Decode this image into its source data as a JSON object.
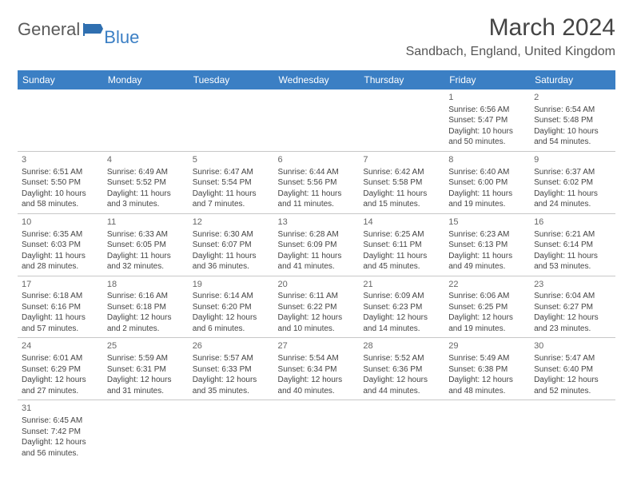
{
  "logo": {
    "general": "General",
    "blue": "Blue",
    "flag_color": "#2f6fb0"
  },
  "title": "March 2024",
  "location": "Sandbach, England, United Kingdom",
  "header_bg": "#3b7fc4",
  "day_headers": [
    "Sunday",
    "Monday",
    "Tuesday",
    "Wednesday",
    "Thursday",
    "Friday",
    "Saturday"
  ],
  "weeks": [
    [
      null,
      null,
      null,
      null,
      null,
      {
        "n": "1",
        "sr": "Sunrise: 6:56 AM",
        "ss": "Sunset: 5:47 PM",
        "dl1": "Daylight: 10 hours",
        "dl2": "and 50 minutes."
      },
      {
        "n": "2",
        "sr": "Sunrise: 6:54 AM",
        "ss": "Sunset: 5:48 PM",
        "dl1": "Daylight: 10 hours",
        "dl2": "and 54 minutes."
      }
    ],
    [
      {
        "n": "3",
        "sr": "Sunrise: 6:51 AM",
        "ss": "Sunset: 5:50 PM",
        "dl1": "Daylight: 10 hours",
        "dl2": "and 58 minutes."
      },
      {
        "n": "4",
        "sr": "Sunrise: 6:49 AM",
        "ss": "Sunset: 5:52 PM",
        "dl1": "Daylight: 11 hours",
        "dl2": "and 3 minutes."
      },
      {
        "n": "5",
        "sr": "Sunrise: 6:47 AM",
        "ss": "Sunset: 5:54 PM",
        "dl1": "Daylight: 11 hours",
        "dl2": "and 7 minutes."
      },
      {
        "n": "6",
        "sr": "Sunrise: 6:44 AM",
        "ss": "Sunset: 5:56 PM",
        "dl1": "Daylight: 11 hours",
        "dl2": "and 11 minutes."
      },
      {
        "n": "7",
        "sr": "Sunrise: 6:42 AM",
        "ss": "Sunset: 5:58 PM",
        "dl1": "Daylight: 11 hours",
        "dl2": "and 15 minutes."
      },
      {
        "n": "8",
        "sr": "Sunrise: 6:40 AM",
        "ss": "Sunset: 6:00 PM",
        "dl1": "Daylight: 11 hours",
        "dl2": "and 19 minutes."
      },
      {
        "n": "9",
        "sr": "Sunrise: 6:37 AM",
        "ss": "Sunset: 6:02 PM",
        "dl1": "Daylight: 11 hours",
        "dl2": "and 24 minutes."
      }
    ],
    [
      {
        "n": "10",
        "sr": "Sunrise: 6:35 AM",
        "ss": "Sunset: 6:03 PM",
        "dl1": "Daylight: 11 hours",
        "dl2": "and 28 minutes."
      },
      {
        "n": "11",
        "sr": "Sunrise: 6:33 AM",
        "ss": "Sunset: 6:05 PM",
        "dl1": "Daylight: 11 hours",
        "dl2": "and 32 minutes."
      },
      {
        "n": "12",
        "sr": "Sunrise: 6:30 AM",
        "ss": "Sunset: 6:07 PM",
        "dl1": "Daylight: 11 hours",
        "dl2": "and 36 minutes."
      },
      {
        "n": "13",
        "sr": "Sunrise: 6:28 AM",
        "ss": "Sunset: 6:09 PM",
        "dl1": "Daylight: 11 hours",
        "dl2": "and 41 minutes."
      },
      {
        "n": "14",
        "sr": "Sunrise: 6:25 AM",
        "ss": "Sunset: 6:11 PM",
        "dl1": "Daylight: 11 hours",
        "dl2": "and 45 minutes."
      },
      {
        "n": "15",
        "sr": "Sunrise: 6:23 AM",
        "ss": "Sunset: 6:13 PM",
        "dl1": "Daylight: 11 hours",
        "dl2": "and 49 minutes."
      },
      {
        "n": "16",
        "sr": "Sunrise: 6:21 AM",
        "ss": "Sunset: 6:14 PM",
        "dl1": "Daylight: 11 hours",
        "dl2": "and 53 minutes."
      }
    ],
    [
      {
        "n": "17",
        "sr": "Sunrise: 6:18 AM",
        "ss": "Sunset: 6:16 PM",
        "dl1": "Daylight: 11 hours",
        "dl2": "and 57 minutes."
      },
      {
        "n": "18",
        "sr": "Sunrise: 6:16 AM",
        "ss": "Sunset: 6:18 PM",
        "dl1": "Daylight: 12 hours",
        "dl2": "and 2 minutes."
      },
      {
        "n": "19",
        "sr": "Sunrise: 6:14 AM",
        "ss": "Sunset: 6:20 PM",
        "dl1": "Daylight: 12 hours",
        "dl2": "and 6 minutes."
      },
      {
        "n": "20",
        "sr": "Sunrise: 6:11 AM",
        "ss": "Sunset: 6:22 PM",
        "dl1": "Daylight: 12 hours",
        "dl2": "and 10 minutes."
      },
      {
        "n": "21",
        "sr": "Sunrise: 6:09 AM",
        "ss": "Sunset: 6:23 PM",
        "dl1": "Daylight: 12 hours",
        "dl2": "and 14 minutes."
      },
      {
        "n": "22",
        "sr": "Sunrise: 6:06 AM",
        "ss": "Sunset: 6:25 PM",
        "dl1": "Daylight: 12 hours",
        "dl2": "and 19 minutes."
      },
      {
        "n": "23",
        "sr": "Sunrise: 6:04 AM",
        "ss": "Sunset: 6:27 PM",
        "dl1": "Daylight: 12 hours",
        "dl2": "and 23 minutes."
      }
    ],
    [
      {
        "n": "24",
        "sr": "Sunrise: 6:01 AM",
        "ss": "Sunset: 6:29 PM",
        "dl1": "Daylight: 12 hours",
        "dl2": "and 27 minutes."
      },
      {
        "n": "25",
        "sr": "Sunrise: 5:59 AM",
        "ss": "Sunset: 6:31 PM",
        "dl1": "Daylight: 12 hours",
        "dl2": "and 31 minutes."
      },
      {
        "n": "26",
        "sr": "Sunrise: 5:57 AM",
        "ss": "Sunset: 6:33 PM",
        "dl1": "Daylight: 12 hours",
        "dl2": "and 35 minutes."
      },
      {
        "n": "27",
        "sr": "Sunrise: 5:54 AM",
        "ss": "Sunset: 6:34 PM",
        "dl1": "Daylight: 12 hours",
        "dl2": "and 40 minutes."
      },
      {
        "n": "28",
        "sr": "Sunrise: 5:52 AM",
        "ss": "Sunset: 6:36 PM",
        "dl1": "Daylight: 12 hours",
        "dl2": "and 44 minutes."
      },
      {
        "n": "29",
        "sr": "Sunrise: 5:49 AM",
        "ss": "Sunset: 6:38 PM",
        "dl1": "Daylight: 12 hours",
        "dl2": "and 48 minutes."
      },
      {
        "n": "30",
        "sr": "Sunrise: 5:47 AM",
        "ss": "Sunset: 6:40 PM",
        "dl1": "Daylight: 12 hours",
        "dl2": "and 52 minutes."
      }
    ],
    [
      {
        "n": "31",
        "sr": "Sunrise: 6:45 AM",
        "ss": "Sunset: 7:42 PM",
        "dl1": "Daylight: 12 hours",
        "dl2": "and 56 minutes."
      },
      null,
      null,
      null,
      null,
      null,
      null
    ]
  ]
}
